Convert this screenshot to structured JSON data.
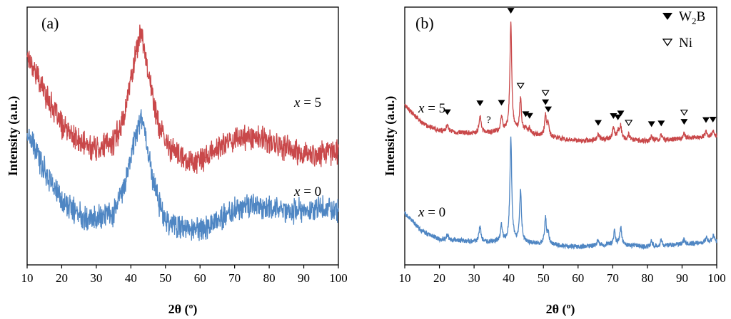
{
  "chart_data": [
    {
      "type": "line",
      "panel_label": "(a)",
      "xlabel": "2θ (º)",
      "ylabel": "Intensity (a.u.)",
      "xlim": [
        10,
        100
      ],
      "xticks": [
        10,
        20,
        30,
        40,
        50,
        60,
        70,
        80,
        90,
        100
      ],
      "yticks_shown": false,
      "series": [
        {
          "name": "x = 5",
          "label_var": "x",
          "label_rest": " = 5",
          "color": "#c9484a",
          "x": [
            10,
            15,
            20,
            25,
            30,
            35,
            38,
            40,
            42,
            43,
            44,
            46,
            48,
            50,
            55,
            60,
            65,
            70,
            75,
            80,
            85,
            90,
            95,
            100
          ],
          "y": [
            1.0,
            0.82,
            0.66,
            0.58,
            0.55,
            0.58,
            0.7,
            0.88,
            1.05,
            1.1,
            1.02,
            0.82,
            0.66,
            0.58,
            0.5,
            0.49,
            0.55,
            0.6,
            0.61,
            0.58,
            0.55,
            0.52,
            0.53,
            0.54
          ]
        },
        {
          "name": "x = 0",
          "label_var": "x",
          "label_rest": " = 0",
          "color": "#4f86c3",
          "x": [
            10,
            15,
            20,
            25,
            30,
            35,
            38,
            40,
            42,
            43,
            44,
            46,
            48,
            50,
            55,
            60,
            65,
            70,
            75,
            80,
            85,
            90,
            95,
            100
          ],
          "y": [
            0.62,
            0.45,
            0.3,
            0.24,
            0.22,
            0.25,
            0.36,
            0.52,
            0.66,
            0.7,
            0.64,
            0.44,
            0.3,
            0.22,
            0.17,
            0.17,
            0.21,
            0.26,
            0.28,
            0.27,
            0.26,
            0.25,
            0.26,
            0.26
          ]
        }
      ]
    },
    {
      "type": "line",
      "panel_label": "(b)",
      "xlabel": "2θ (º)",
      "ylabel": "Intensity (a.u.)",
      "xlim": [
        10,
        100
      ],
      "xticks": [
        10,
        20,
        30,
        40,
        50,
        60,
        70,
        80,
        90,
        100
      ],
      "yticks_shown": false,
      "series": [
        {
          "name": "x = 5",
          "label_var": "x",
          "label_rest": " = 5",
          "color": "#c9484a",
          "baseline": [
            [
              10,
              0.62
            ],
            [
              15,
              0.55
            ],
            [
              20,
              0.52
            ],
            [
              30,
              0.51
            ],
            [
              40,
              0.52
            ],
            [
              50,
              0.5
            ],
            [
              60,
              0.48
            ],
            [
              70,
              0.49
            ],
            [
              80,
              0.48
            ],
            [
              90,
              0.49
            ],
            [
              100,
              0.5
            ]
          ],
          "peaks": [
            [
              22.3,
              0.03
            ],
            [
              31.7,
              0.07
            ],
            [
              37.9,
              0.06
            ],
            [
              40.6,
              0.42
            ],
            [
              43.4,
              0.13
            ],
            [
              44.9,
              0.02
            ],
            [
              46.0,
              0.02
            ],
            [
              50.6,
              0.08
            ],
            [
              51.4,
              0.05
            ],
            [
              65.8,
              0.02
            ],
            [
              70.2,
              0.04
            ],
            [
              71.5,
              0.03
            ],
            [
              72.3,
              0.05
            ],
            [
              74.6,
              0.02
            ],
            [
              81.2,
              0.02
            ],
            [
              84.0,
              0.02
            ],
            [
              90.6,
              0.02
            ],
            [
              96.9,
              0.02
            ],
            [
              98.9,
              0.02
            ]
          ]
        },
        {
          "name": "x = 0",
          "label_var": "x",
          "label_rest": " = 0",
          "color": "#4f86c3",
          "baseline": [
            [
              10,
              0.2
            ],
            [
              15,
              0.13
            ],
            [
              20,
              0.1
            ],
            [
              30,
              0.09
            ],
            [
              40,
              0.09
            ],
            [
              50,
              0.08
            ],
            [
              60,
              0.07
            ],
            [
              70,
              0.08
            ],
            [
              80,
              0.07
            ],
            [
              90,
              0.08
            ],
            [
              100,
              0.09
            ]
          ],
          "peaks": [
            [
              22.3,
              0.02
            ],
            [
              31.7,
              0.06
            ],
            [
              37.9,
              0.06
            ],
            [
              40.6,
              0.4
            ],
            [
              43.4,
              0.2
            ],
            [
              50.6,
              0.1
            ],
            [
              51.4,
              0.04
            ],
            [
              65.8,
              0.02
            ],
            [
              70.5,
              0.05
            ],
            [
              72.3,
              0.07
            ],
            [
              81.2,
              0.02
            ],
            [
              84.0,
              0.02
            ],
            [
              90.6,
              0.02
            ],
            [
              97.0,
              0.02
            ],
            [
              99.0,
              0.03
            ]
          ]
        }
      ],
      "legend": {
        "position": "top-right",
        "entries": [
          {
            "marker": "filled-triangle",
            "text_pre": "W",
            "text_sub": "2",
            "text_post": "B"
          },
          {
            "marker": "open-triangle",
            "text_pre": "Ni",
            "text_sub": "",
            "text_post": ""
          }
        ]
      },
      "annotations": {
        "w2b_peaks": [
          22.3,
          31.7,
          37.9,
          40.6,
          44.9,
          46.0,
          50.6,
          51.4,
          65.8,
          70.2,
          71.5,
          72.3,
          81.2,
          84.0,
          90.6,
          96.9,
          98.9
        ],
        "ni_peaks": [
          43.4,
          50.6,
          74.6,
          90.6
        ],
        "unknown": [
          {
            "x": 34.2,
            "text": "?"
          }
        ]
      }
    }
  ]
}
